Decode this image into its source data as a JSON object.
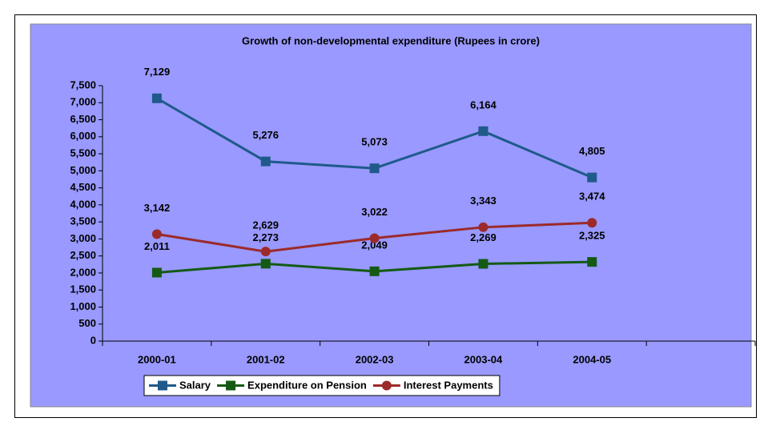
{
  "chart_data": {
    "type": "line",
    "title": "Growth of non-developmental  expenditure (Rupees in crore)",
    "categories": [
      "2000-01",
      "2001-02",
      "2002-03",
      "2003-04",
      "2004-05",
      null
    ],
    "series": [
      {
        "name": "Salary",
        "color": "#1f5a8a",
        "marker": "square",
        "values": [
          7129,
          5276,
          5073,
          6164,
          4805,
          null
        ],
        "value_labels": [
          "7,129",
          "5,276",
          "5,073",
          "6,164",
          "4,805",
          null
        ]
      },
      {
        "name": "Expenditure on Pension",
        "color": "#145a14",
        "marker": "square",
        "values": [
          2011,
          2273,
          2049,
          2269,
          2325,
          null
        ],
        "value_labels": [
          "2,011",
          "2,273",
          "2,049",
          "2,269",
          "2,325",
          null
        ]
      },
      {
        "name": "Interest Payments",
        "color": "#9c2a2a",
        "marker": "circle",
        "values": [
          3142,
          2629,
          3022,
          3343,
          3474,
          null
        ],
        "value_labels": [
          "3,142",
          "2,629",
          "3,022",
          "3,343",
          "3,474",
          null
        ]
      }
    ],
    "ylim": [
      0,
      7500
    ],
    "yticks": [
      0,
      500,
      {
        "value": 1000,
        "label": "1,000"
      },
      {
        "value": 1500,
        "label": "1,500"
      },
      {
        "value": 2000,
        "label": "2,000"
      },
      {
        "value": 2500,
        "label": "2,500"
      },
      {
        "value": 3000,
        "label": "3,000"
      },
      {
        "value": 3500,
        "label": "3,500"
      },
      {
        "value": 4000,
        "label": "4,000"
      },
      {
        "value": 4500,
        "label": "4,500"
      },
      {
        "value": 5000,
        "label": "5,000"
      },
      {
        "value": 5500,
        "label": "5,500"
      },
      {
        "value": 6000,
        "label": "6,000"
      },
      {
        "value": 6500,
        "label": "6,500"
      },
      {
        "value": 7000,
        "label": "7,000"
      },
      {
        "value": 7500,
        "label": "7,500"
      }
    ],
    "background": "#9999ff",
    "legend": "bottom"
  }
}
